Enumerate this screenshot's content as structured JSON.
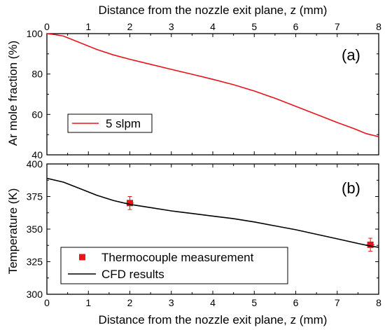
{
  "chart_data": [
    {
      "panel": "a",
      "type": "line",
      "panel_label": "(a)",
      "xlabel": "Distance from the nozzle exit plane, z (mm)",
      "ylabel": "Ar mole fraction (%)",
      "xlim": [
        0,
        8
      ],
      "ylim": [
        40,
        100
      ],
      "xticks": [
        0,
        1,
        2,
        3,
        4,
        5,
        6,
        7,
        8
      ],
      "yticks": [
        40,
        60,
        80,
        100
      ],
      "legend_position": "bottom-left",
      "series": [
        {
          "name": "5 slpm",
          "color": "#e8141b",
          "x": [
            0,
            0.2,
            0.4,
            0.8,
            1.2,
            1.6,
            2.0,
            2.5,
            3.0,
            3.5,
            4.0,
            4.5,
            5.0,
            5.5,
            6.0,
            6.5,
            7.0,
            7.4,
            7.7,
            8.0
          ],
          "y": [
            100,
            99.5,
            98.8,
            95.5,
            92.2,
            89.5,
            87.3,
            84.8,
            82.3,
            79.9,
            77.4,
            74.7,
            71.6,
            68.0,
            64.0,
            60.0,
            56.0,
            53.0,
            50.5,
            49.0
          ]
        }
      ]
    },
    {
      "panel": "b",
      "type": "line",
      "panel_label": "(b)",
      "xlabel": "Distance from the nozzle exit plane, z (mm)",
      "ylabel": "Temperature (K)",
      "xlim": [
        0,
        8
      ],
      "ylim": [
        300,
        400
      ],
      "xticks": [
        0,
        1,
        2,
        3,
        4,
        5,
        6,
        7,
        8
      ],
      "yticks": [
        300,
        325,
        350,
        375,
        400
      ],
      "legend_position": "bottom-left",
      "series": [
        {
          "name": "Thermocouple measurement",
          "kind": "scatter",
          "color": "#e8141b",
          "x": [
            2.0,
            7.8
          ],
          "y": [
            370,
            338
          ],
          "yerr": [
            5,
            5
          ],
          "xerr": [
            0.1,
            0.1
          ]
        },
        {
          "name": "CFD results",
          "kind": "line",
          "color": "#000000",
          "x": [
            0,
            0.4,
            0.8,
            1.2,
            1.6,
            2.0,
            2.5,
            3.0,
            3.5,
            4.0,
            4.5,
            5.0,
            5.5,
            6.0,
            6.5,
            7.0,
            7.5,
            7.8,
            8.0
          ],
          "y": [
            389,
            386,
            381,
            376,
            372,
            369,
            366.5,
            364,
            362,
            360,
            358,
            355.5,
            352.5,
            349.5,
            346,
            342.5,
            339,
            337,
            336
          ]
        }
      ]
    }
  ]
}
